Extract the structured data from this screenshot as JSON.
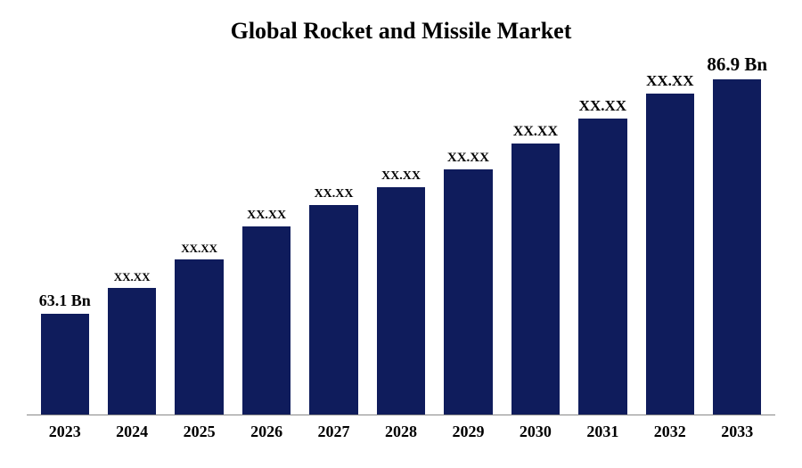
{
  "chart": {
    "type": "bar",
    "title": "Global Rocket and Missile Market",
    "title_fontsize": 26,
    "title_fontweight": "bold",
    "title_color": "#000000",
    "background_color": "#ffffff",
    "axis_line_color": "#888888",
    "data": [
      {
        "year": "2023",
        "value": 28,
        "label": "63.1 Bn",
        "label_fontsize": 18
      },
      {
        "year": "2024",
        "value": 35,
        "label": "XX.XX",
        "label_fontsize": 13
      },
      {
        "year": "2025",
        "value": 43,
        "label": "XX.XX",
        "label_fontsize": 13
      },
      {
        "year": "2026",
        "value": 52,
        "label": "XX.XX",
        "label_fontsize": 14
      },
      {
        "year": "2027",
        "value": 58,
        "label": "XX.XX",
        "label_fontsize": 14
      },
      {
        "year": "2028",
        "value": 63,
        "label": "XX.XX",
        "label_fontsize": 14
      },
      {
        "year": "2029",
        "value": 68,
        "label": "XX.XX",
        "label_fontsize": 15
      },
      {
        "year": "2030",
        "value": 75,
        "label": "XX.XX",
        "label_fontsize": 16
      },
      {
        "year": "2031",
        "value": 82,
        "label": "XX.XX",
        "label_fontsize": 17
      },
      {
        "year": "2032",
        "value": 89,
        "label": "XX.XX",
        "label_fontsize": 17
      },
      {
        "year": "2033",
        "value": 96,
        "label": "86.9 Bn",
        "label_fontsize": 21
      }
    ],
    "bar_color": "#0f1c5c",
    "bar_width_ratio": 0.72,
    "x_label_fontsize": 18,
    "x_label_fontweight": "bold",
    "x_label_color": "#000000",
    "ylim": [
      0,
      100
    ]
  }
}
